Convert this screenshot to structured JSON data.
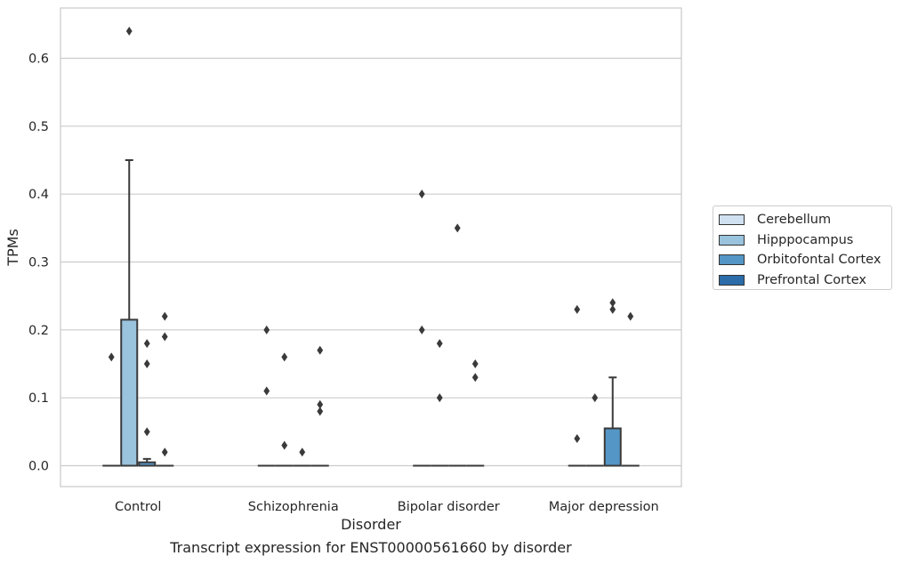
{
  "chart_data": {
    "type": "box",
    "xlabel": "Disorder",
    "ylabel": "TPMs",
    "caption": "Transcript expression for ENST00000561660 by disorder",
    "categories": [
      "Control",
      "Schizophrenia",
      "Bipolar disorder",
      "Major depression"
    ],
    "ylim": [
      -0.032,
      0.67
    ],
    "yticks": [
      0.0,
      0.1,
      0.2,
      0.3,
      0.4,
      0.5,
      0.6
    ],
    "ytick_labels": [
      "0.0",
      "0.1",
      "0.2",
      "0.3",
      "0.4",
      "0.5",
      "0.6"
    ],
    "grid": "horizontal",
    "legend_position": "right",
    "series": [
      {
        "name": "Cerebellum",
        "color": "#d0e1f2",
        "boxes": [
          {
            "q1": 0,
            "median": 0,
            "q3": 0,
            "whisker_low": 0,
            "whisker_high": 0,
            "outliers": [
              0.16
            ]
          },
          {
            "q1": 0,
            "median": 0,
            "q3": 0,
            "whisker_low": 0,
            "whisker_high": 0,
            "outliers": [
              0.2,
              0.11
            ]
          },
          {
            "q1": 0,
            "median": 0,
            "q3": 0,
            "whisker_low": 0,
            "whisker_high": 0,
            "outliers": [
              0.4,
              0.2
            ]
          },
          {
            "q1": 0,
            "median": 0,
            "q3": 0,
            "whisker_low": 0,
            "whisker_high": 0,
            "outliers": [
              0.23,
              0.04
            ]
          }
        ]
      },
      {
        "name": "Hipppocampus",
        "color": "#9ac3dd",
        "boxes": [
          {
            "q1": 0,
            "median": 0,
            "q3": 0.215,
            "whisker_low": 0,
            "whisker_high": 0.45,
            "outliers": [
              0.64
            ]
          },
          {
            "q1": 0,
            "median": 0,
            "q3": 0,
            "whisker_low": 0,
            "whisker_high": 0,
            "outliers": [
              0.16,
              0.03
            ]
          },
          {
            "q1": 0,
            "median": 0,
            "q3": 0,
            "whisker_low": 0,
            "whisker_high": 0,
            "outliers": [
              0.18,
              0.1
            ]
          },
          {
            "q1": 0,
            "median": 0,
            "q3": 0,
            "whisker_low": 0,
            "whisker_high": 0,
            "outliers": [
              0.1
            ]
          }
        ]
      },
      {
        "name": "Orbitofontal Cortex",
        "color": "#5496c5",
        "boxes": [
          {
            "q1": 0,
            "median": 0,
            "q3": 0.005,
            "whisker_low": 0,
            "whisker_high": 0.01,
            "outliers": [
              0.18,
              0.15,
              0.05
            ]
          },
          {
            "q1": 0,
            "median": 0,
            "q3": 0,
            "whisker_low": 0,
            "whisker_high": 0,
            "outliers": [
              0.02
            ]
          },
          {
            "q1": 0,
            "median": 0,
            "q3": 0,
            "whisker_low": 0,
            "whisker_high": 0,
            "outliers": [
              0.35
            ]
          },
          {
            "q1": 0,
            "median": 0,
            "q3": 0.055,
            "whisker_low": 0,
            "whisker_high": 0.13,
            "outliers": [
              0.24,
              0.23
            ]
          }
        ]
      },
      {
        "name": "Prefrontal Cortex",
        "color": "#2b6ca9",
        "boxes": [
          {
            "q1": 0,
            "median": 0,
            "q3": 0,
            "whisker_low": 0,
            "whisker_high": 0,
            "outliers": [
              0.22,
              0.19,
              0.02
            ]
          },
          {
            "q1": 0,
            "median": 0,
            "q3": 0,
            "whisker_low": 0,
            "whisker_high": 0,
            "outliers": [
              0.17,
              0.09,
              0.08
            ]
          },
          {
            "q1": 0,
            "median": 0,
            "q3": 0,
            "whisker_low": 0,
            "whisker_high": 0,
            "outliers": [
              0.15,
              0.13
            ]
          },
          {
            "q1": 0,
            "median": 0,
            "q3": 0,
            "whisker_low": 0,
            "whisker_high": 0,
            "outliers": [
              0.22
            ]
          }
        ]
      }
    ]
  }
}
